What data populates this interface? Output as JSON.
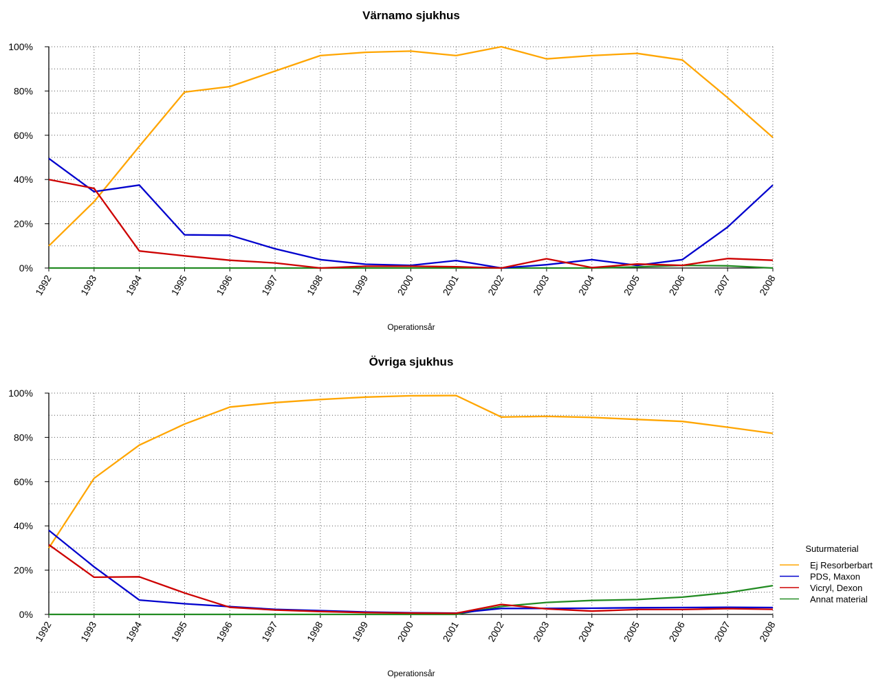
{
  "legend": {
    "title": "Suturmaterial",
    "items": [
      {
        "label": "Ej Resorberbart",
        "color": "#FFA500"
      },
      {
        "label": "PDS, Maxon",
        "color": "#0000CD"
      },
      {
        "label": "Vicryl, Dexon",
        "color": "#CD0000"
      },
      {
        "label": "Annat material",
        "color": "#228B22"
      }
    ]
  },
  "chart_data": [
    {
      "type": "line",
      "title": "Värnamo sjukhus",
      "xlabel": "Operationsår",
      "ylabel": "",
      "ylim": [
        0,
        100
      ],
      "yticks": [
        "0%",
        "20%",
        "40%",
        "60%",
        "80%",
        "100%"
      ],
      "grid": true,
      "x": [
        "1992",
        "1993",
        "1994",
        "1995",
        "1996",
        "1997",
        "1998",
        "1999",
        "2000",
        "2001",
        "2002",
        "2003",
        "2004",
        "2005",
        "2006",
        "2007",
        "2008"
      ],
      "series": [
        {
          "name": "Ej Resorberbart",
          "color": "#FFA500",
          "values": [
            10,
            30,
            55,
            79.5,
            82,
            89,
            96,
            97.5,
            98,
            96,
            100,
            94.5,
            96,
            97,
            94,
            77,
            59
          ]
        },
        {
          "name": "PDS, Maxon",
          "color": "#0000CD",
          "values": [
            49.5,
            34.5,
            37.5,
            15,
            14.8,
            8.7,
            3.8,
            1.7,
            1.2,
            3.4,
            0,
            1.5,
            3.8,
            1.2,
            3.8,
            18.5,
            37.5
          ]
        },
        {
          "name": "Vicryl, Dexon",
          "color": "#CD0000",
          "values": [
            40,
            36,
            7.7,
            5.5,
            3.5,
            2.3,
            0,
            0.8,
            0.8,
            0.6,
            0,
            4.2,
            0.2,
            1.8,
            1.2,
            4.3,
            3.5
          ]
        },
        {
          "name": "Annat material",
          "color": "#228B22",
          "values": [
            0,
            0,
            0,
            0,
            0,
            0,
            0,
            0,
            0,
            0,
            0,
            0,
            0,
            0.5,
            1.2,
            1,
            0
          ]
        }
      ]
    },
    {
      "type": "line",
      "title": "Övriga sjukhus",
      "xlabel": "Operationsår",
      "ylabel": "",
      "ylim": [
        0,
        100
      ],
      "yticks": [
        "0%",
        "20%",
        "40%",
        "60%",
        "80%",
        "100%"
      ],
      "grid": true,
      "x": [
        "1992",
        "1993",
        "1994",
        "1995",
        "1996",
        "1997",
        "1998",
        "1999",
        "2000",
        "2001",
        "2002",
        "2003",
        "2004",
        "2005",
        "2006",
        "2007",
        "2008"
      ],
      "series": [
        {
          "name": "Ej Resorberbart",
          "color": "#FFA500",
          "values": [
            30,
            61.5,
            76.5,
            86,
            93.7,
            95.7,
            97.1,
            98.2,
            98.8,
            98.9,
            89.2,
            89.5,
            89,
            88.1,
            87.2,
            84.6,
            81.8
          ]
        },
        {
          "name": "PDS, Maxon",
          "color": "#0000CD",
          "values": [
            38,
            21.5,
            6.5,
            4.8,
            3.5,
            2.3,
            1.7,
            1.1,
            0.7,
            0.6,
            2.7,
            2.7,
            2.8,
            3,
            3.1,
            3.2,
            3.1
          ]
        },
        {
          "name": "Vicryl, Dexon",
          "color": "#CD0000",
          "values": [
            31.5,
            16.8,
            17,
            9.7,
            3.2,
            2,
            1.3,
            0.8,
            0.6,
            0.5,
            4.5,
            2.5,
            1.5,
            2.2,
            2.2,
            2.6,
            2.3
          ]
        },
        {
          "name": "Annat material",
          "color": "#228B22",
          "values": [
            0,
            0,
            0,
            0,
            0,
            0,
            0,
            0,
            0,
            0,
            3.6,
            5.4,
            6.3,
            6.7,
            7.8,
            9.8,
            13
          ]
        }
      ]
    }
  ]
}
